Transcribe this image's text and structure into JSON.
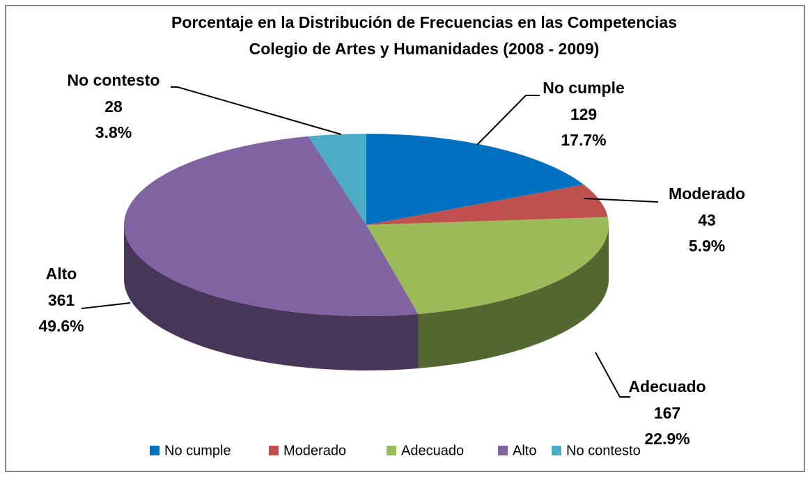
{
  "chart_data": {
    "type": "pie",
    "title": "Porcentaje en la Distribución de Frecuencias en las Competencias",
    "subtitle": "Colegio de Artes y Humanidades (2008 - 2009)",
    "categories": [
      "No cumple",
      "Moderado",
      "Adecuado",
      "Alto",
      "No contesto"
    ],
    "values": [
      129,
      43,
      167,
      361,
      28
    ],
    "percentages": [
      17.7,
      5.9,
      22.9,
      49.6,
      3.8
    ],
    "percentage_labels": [
      "17.7%",
      "5.9%",
      "22.9%",
      "49.6%",
      "3.8%"
    ],
    "colors": [
      "#0070c0",
      "#c0504d",
      "#9bbb59",
      "#8064a2",
      "#4bacc6"
    ],
    "legend": "bottom"
  }
}
